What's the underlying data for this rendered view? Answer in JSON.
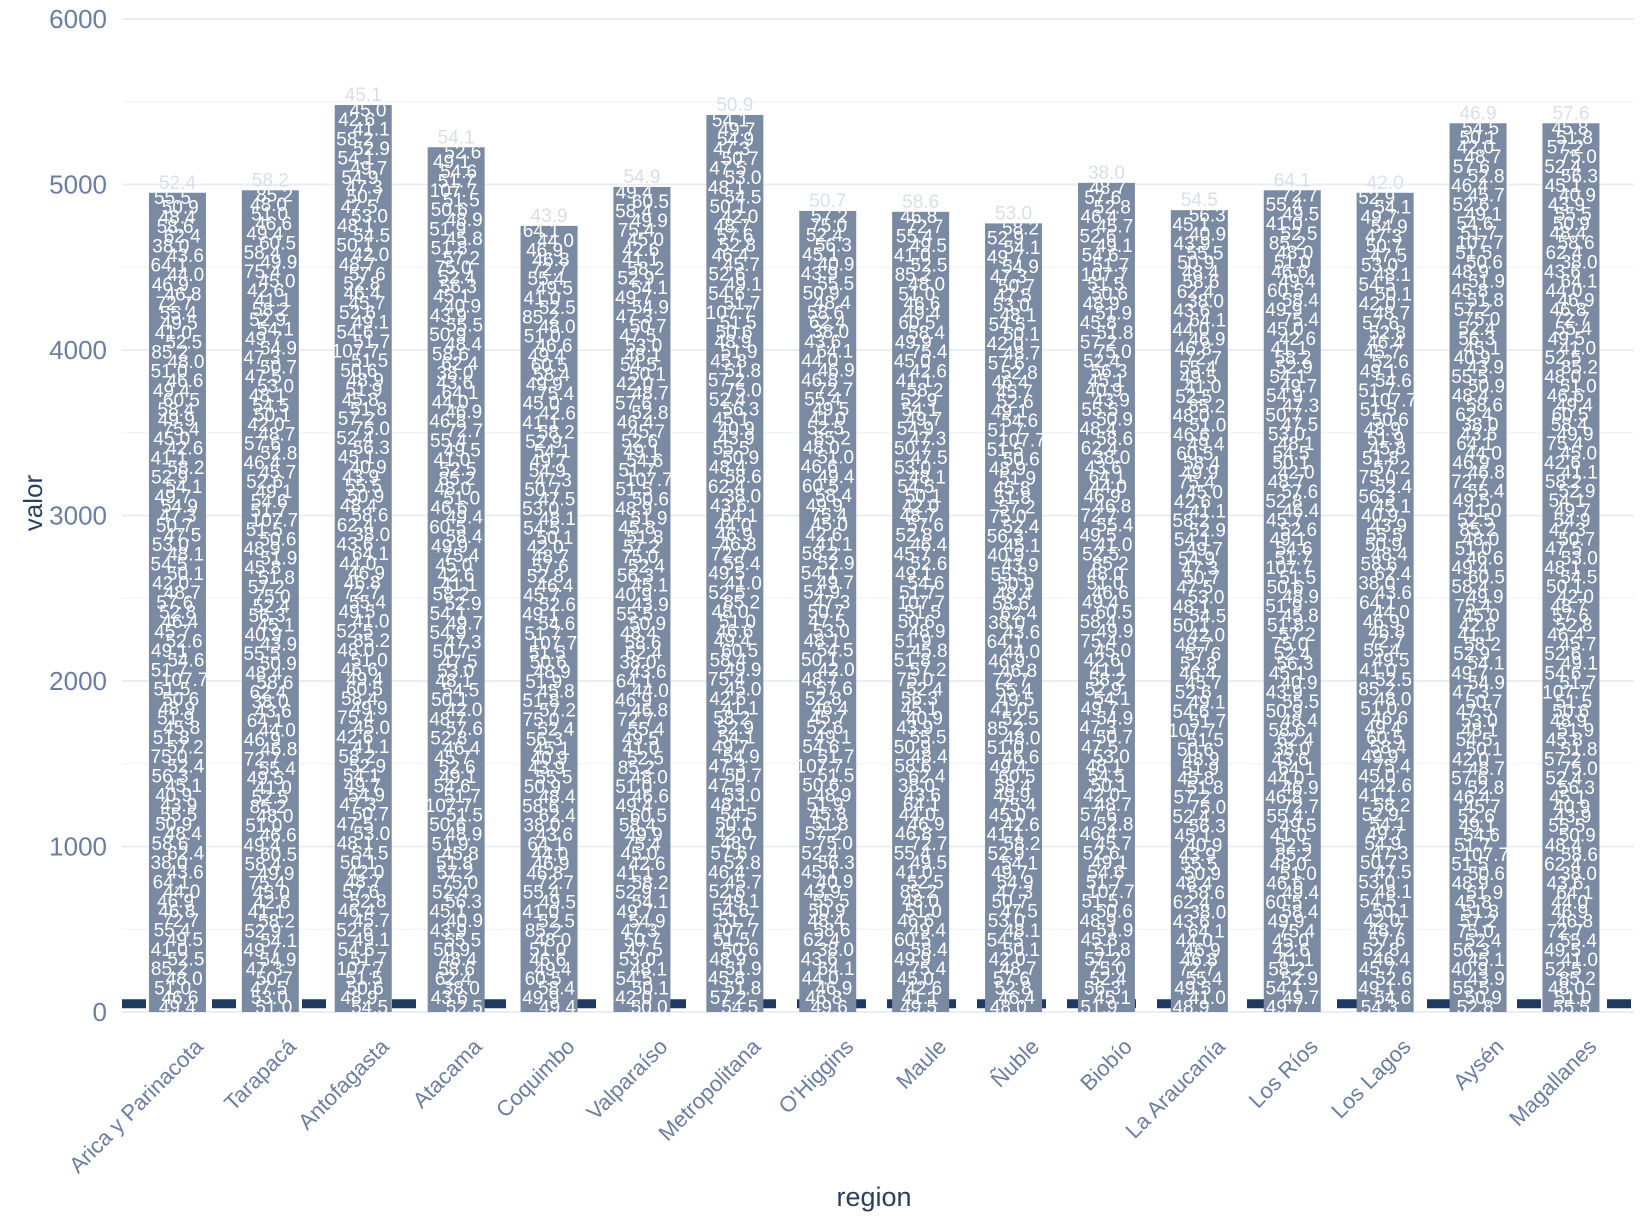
{
  "chart_data": {
    "type": "bar",
    "title": "",
    "xlabel": "region",
    "ylabel": "valor",
    "ylim": [
      0,
      6000
    ],
    "ytick_step": 1000,
    "minor_grid_step": 500,
    "ytick_labels": [
      "0",
      "1000",
      "2000",
      "3000",
      "4000",
      "5000",
      "6000"
    ],
    "categories": [
      "Arica y Parinacota",
      "Tarapacá",
      "Antofagasta",
      "Atacama",
      "Coquimbo",
      "Valparaíso",
      "Metropolitana",
      "O'Higgins",
      "Maule",
      "Ñuble",
      "Biobío",
      "La Araucanía",
      "Los Ríos",
      "Los Lagos",
      "Aysén",
      "Magallanes"
    ],
    "totals": [
      4950,
      4965,
      5480,
      5225,
      4750,
      4985,
      5420,
      4840,
      4835,
      4765,
      5010,
      4845,
      4965,
      4950,
      5370,
      5370
    ],
    "bottom_labels": [
      "49.4",
      "51.0",
      "54.5",
      "52.5",
      "49.4",
      "50.0",
      "54.5",
      "49.6",
      "49.5",
      "48.0",
      "51.9",
      "48.9",
      "49.7",
      "54.3",
      "52.8",
      "55.5"
    ],
    "segment_label_pool": [
      "49.4",
      "48.7",
      "40.9",
      "46.6",
      "42.0",
      "45.1",
      "51.0",
      "50.1",
      "56.3",
      "48.0",
      "54.5",
      "52.4",
      "85.2",
      "48.1",
      "75.0",
      "52.5",
      "53.0",
      "57.2",
      "41.0",
      "47.5",
      "51.8",
      "49.5",
      "50.7",
      "45.8",
      "55.4",
      "47.3",
      "51.9",
      "72.7",
      "54.9",
      "48.9",
      "46.8",
      "49.7",
      "50.6",
      "46.9",
      "54.1",
      "51.5",
      "44.0",
      "52.9",
      "107.7",
      "64.1",
      "58.2",
      "51.7",
      "43.6",
      "41.1",
      "54.6",
      "38.0",
      "42.6",
      "49.1",
      "62.4",
      "45.0",
      "52.6",
      "58.6",
      "75.4",
      "45.7",
      "48.4",
      "49.9",
      "46.4",
      "50.9",
      "58.4",
      "52.8",
      "55.5",
      "60.5",
      "57.6",
      "43.9"
    ],
    "avg_segment_value": 58,
    "reference_line": {
      "value": 50,
      "color": "#1f3a5e",
      "dash": "24 21",
      "width": 9
    },
    "colors": {
      "bar": "#7a8aa3",
      "bar_label": "#ffffff",
      "outside_label": "#d9dfe9",
      "grid_major": "#e7ebf2",
      "grid_minor": "#f2f5f9",
      "tick_label": "#6b7da0",
      "axis_title": "#2a3f5f",
      "background": "#ffffff"
    },
    "grid": true,
    "legend": "none"
  }
}
